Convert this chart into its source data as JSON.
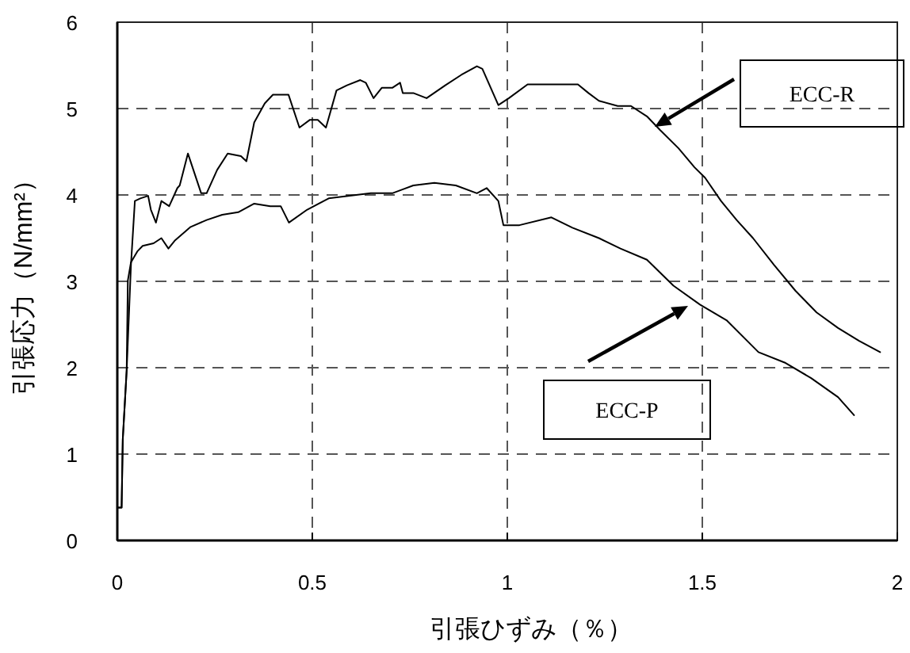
{
  "chart_data": {
    "type": "line",
    "xlabel": "引張ひずみ（％）",
    "ylabel": "引張応力（N/mm²）",
    "xlim": [
      0,
      2
    ],
    "ylim": [
      0,
      6
    ],
    "xticks": [
      0,
      0.5,
      1,
      1.5,
      2
    ],
    "yticks": [
      0,
      1,
      2,
      3,
      4,
      5,
      6
    ],
    "grid": true,
    "marker": "none",
    "line_style": "solid",
    "series": [
      {
        "color": "#000000",
        "x": [
          0,
          0.011,
          0.014,
          0.024,
          0.035,
          0.045,
          0.059,
          0.079,
          0.086,
          0.099,
          0.113,
          0.133,
          0.154,
          0.16,
          0.181,
          0.215,
          0.229,
          0.256,
          0.283,
          0.317,
          0.331,
          0.351,
          0.378,
          0.399,
          0.439,
          0.467,
          0.494,
          0.514,
          0.535,
          0.562,
          0.589,
          0.623,
          0.637,
          0.657,
          0.678,
          0.705,
          0.725,
          0.732,
          0.759,
          0.793,
          0.841,
          0.882,
          0.922,
          0.936,
          0.977,
          1.004,
          1.052,
          1.099,
          1.181,
          1.208,
          1.235,
          1.283,
          1.317,
          1.358,
          1.392,
          1.439,
          1.48,
          1.507,
          1.548,
          1.588,
          1.63,
          1.684,
          1.739,
          1.793,
          1.848,
          1.902,
          1.956
        ],
        "values": [
          0.38,
          0.38,
          1.17,
          1.97,
          3.19,
          3.93,
          3.96,
          3.99,
          3.83,
          3.68,
          3.93,
          3.87,
          4.08,
          4.11,
          4.48,
          4.02,
          4.02,
          4.29,
          4.48,
          4.45,
          4.39,
          4.84,
          5.06,
          5.16,
          5.16,
          4.78,
          4.87,
          4.87,
          4.78,
          5.21,
          5.27,
          5.33,
          5.3,
          5.12,
          5.24,
          5.24,
          5.3,
          5.18,
          5.18,
          5.12,
          5.27,
          5.39,
          5.49,
          5.46,
          5.04,
          5.12,
          5.28,
          5.28,
          5.28,
          5.18,
          5.09,
          5.03,
          5.03,
          4.91,
          4.75,
          4.54,
          4.32,
          4.2,
          3.93,
          3.71,
          3.5,
          3.19,
          2.89,
          2.64,
          2.46,
          2.31,
          2.18
        ]
      },
      {
        "color": "#000000",
        "x": [
          0,
          0.011,
          0.014,
          0.024,
          0.027,
          0.035,
          0.052,
          0.065,
          0.093,
          0.113,
          0.131,
          0.147,
          0.188,
          0.229,
          0.269,
          0.31,
          0.351,
          0.392,
          0.419,
          0.44,
          0.487,
          0.542,
          0.596,
          0.65,
          0.705,
          0.759,
          0.813,
          0.868,
          0.922,
          0.947,
          0.977,
          0.99,
          1.031,
          1.113,
          1.167,
          1.235,
          1.29,
          1.358,
          1.426,
          1.494,
          1.562,
          1.644,
          1.711,
          1.779,
          1.848,
          1.889
        ],
        "values": [
          0.38,
          0.38,
          1.17,
          1.97,
          3.01,
          3.22,
          3.35,
          3.41,
          3.44,
          3.5,
          3.38,
          3.47,
          3.63,
          3.71,
          3.77,
          3.8,
          3.9,
          3.87,
          3.87,
          3.68,
          3.83,
          3.96,
          3.99,
          4.02,
          4.02,
          4.11,
          4.14,
          4.11,
          4.02,
          4.08,
          3.93,
          3.65,
          3.65,
          3.74,
          3.62,
          3.5,
          3.38,
          3.25,
          2.95,
          2.73,
          2.55,
          2.18,
          2.06,
          1.88,
          1.66,
          1.45
        ]
      }
    ],
    "annotations": [
      "ECC-R",
      "ECC-P"
    ]
  }
}
